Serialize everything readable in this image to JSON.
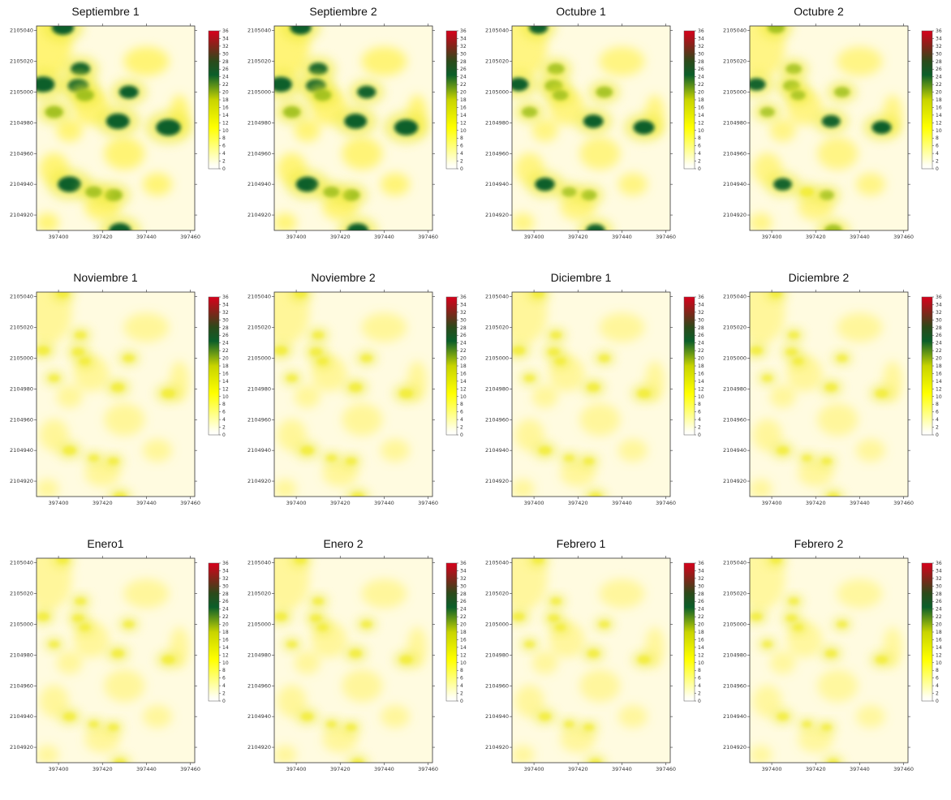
{
  "chart_data": {
    "type": "heatmap",
    "colorbar": {
      "colors": [
        "#ffffff",
        "#ffff00",
        "#0b5e2a",
        "#d9001b"
      ],
      "ticks": [
        0,
        2,
        4,
        6,
        8,
        10,
        12,
        14,
        16,
        18,
        20,
        22,
        24,
        26,
        28,
        30,
        32,
        34,
        36
      ],
      "range": [
        0,
        36
      ]
    },
    "x_ticks": [
      397400,
      397420,
      397440,
      397460
    ],
    "y_ticks": [
      2105040,
      2105020,
      2105000,
      2104980,
      2104960,
      2104940,
      2104920
    ],
    "xlim": [
      397390,
      397462
    ],
    "ylim": [
      2104910,
      2105043
    ],
    "panels": [
      {
        "title": "Septiembre 1",
        "intensity": 1.0
      },
      {
        "title": "Septiembre 2",
        "intensity": 0.95
      },
      {
        "title": "Octubre 1",
        "intensity": 0.8
      },
      {
        "title": "Octubre 2",
        "intensity": 0.72
      },
      {
        "title": "Noviembre 1",
        "intensity": 0.4
      },
      {
        "title": "Noviembre 2",
        "intensity": 0.4
      },
      {
        "title": "Diciembre 1",
        "intensity": 0.38
      },
      {
        "title": "Diciembre 2",
        "intensity": 0.35
      },
      {
        "title": "Enero1",
        "intensity": 0.36
      },
      {
        "title": "Enero 2",
        "intensity": 0.36
      },
      {
        "title": "Febrero 1",
        "intensity": 0.34
      },
      {
        "title": "Febrero 2",
        "intensity": 0.32
      }
    ],
    "hotspots": [
      {
        "x": 397393,
        "y": 2105005,
        "v": 26
      },
      {
        "x": 397398,
        "y": 2104987,
        "v": 18
      },
      {
        "x": 397405,
        "y": 2104940,
        "v": 26
      },
      {
        "x": 397410,
        "y": 2105015,
        "v": 20
      },
      {
        "x": 397409,
        "y": 2105004,
        "v": 22
      },
      {
        "x": 397412,
        "y": 2104998,
        "v": 18
      },
      {
        "x": 397427,
        "y": 2104981,
        "v": 26
      },
      {
        "x": 397432,
        "y": 2105000,
        "v": 20
      },
      {
        "x": 397450,
        "y": 2104977,
        "v": 28
      },
      {
        "x": 397428,
        "y": 2104910,
        "v": 24
      },
      {
        "x": 397402,
        "y": 2105042,
        "v": 24
      },
      {
        "x": 397425,
        "y": 2104933,
        "v": 18
      },
      {
        "x": 397416,
        "y": 2104935,
        "v": 16
      }
    ]
  }
}
